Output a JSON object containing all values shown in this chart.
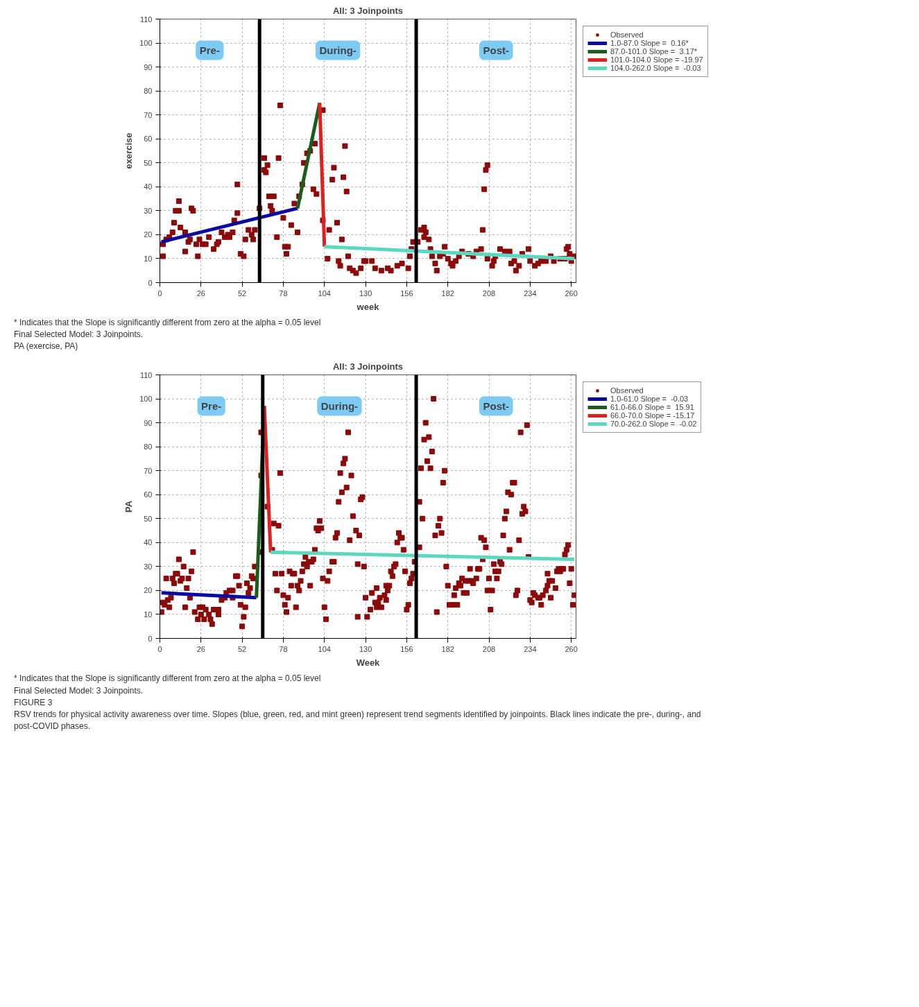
{
  "chart_data": [
    {
      "type": "scatter",
      "title": "All: 3 Joinpoints",
      "xlabel": "week",
      "ylabel": "exercise",
      "xlim": [
        0,
        263
      ],
      "ylim": [
        0,
        110
      ],
      "xticks": [
        0,
        26,
        52,
        78,
        104,
        130,
        156,
        182,
        208,
        234,
        260
      ],
      "yticks": [
        0,
        10,
        20,
        30,
        40,
        50,
        60,
        70,
        80,
        90,
        100,
        110
      ],
      "grid": true,
      "legend": "right",
      "series": [
        {
          "name": "Observed",
          "marker": "square",
          "color": "#8b0a0a",
          "x": [
            2,
            2,
            4,
            6,
            8,
            9,
            10,
            12,
            12,
            13,
            16,
            16,
            18,
            19,
            20,
            21,
            23,
            24,
            25,
            27,
            29,
            31,
            34,
            36,
            37,
            39,
            41,
            43,
            44,
            46,
            47,
            49,
            49,
            51,
            53,
            54,
            56,
            58,
            59,
            60,
            63,
            66,
            66,
            67,
            68,
            69,
            72,
            70,
            71,
            76,
            75,
            78,
            74,
            79,
            80,
            81,
            83,
            85,
            87,
            88,
            90,
            91,
            93,
            95,
            98,
            97,
            99,
            103,
            103,
            106,
            107,
            109,
            110,
            112,
            113,
            114,
            115,
            116,
            117,
            118,
            119,
            120,
            122,
            124,
            127,
            129,
            130,
            134,
            136,
            140,
            144,
            146,
            150,
            153,
            157,
            158,
            159,
            160,
            163,
            165,
            167,
            168,
            167,
            170,
            171,
            172,
            174,
            175,
            177,
            179,
            180,
            182,
            184,
            185,
            187,
            189,
            191,
            195,
            198,
            200,
            203,
            204,
            205,
            206,
            207,
            207,
            210,
            211,
            212,
            215,
            218,
            221,
            222,
            224,
            225,
            227,
            229,
            233,
            234,
            237,
            239,
            241,
            244,
            247,
            249,
            253,
            256,
            257,
            258,
            259,
            260,
            262
          ],
          "values": [
            11,
            16,
            18,
            19,
            21,
            25,
            30,
            30,
            34,
            23,
            21,
            13,
            17,
            18,
            31,
            30,
            16,
            11,
            18,
            16,
            16,
            19,
            14,
            16,
            17,
            21,
            19,
            20,
            19,
            21,
            26,
            29,
            41,
            12,
            11,
            18,
            22,
            20,
            18,
            22,
            31,
            47,
            52,
            46,
            49,
            36,
            36,
            32,
            30,
            74,
            52,
            27,
            19,
            15,
            12,
            15,
            24,
            33,
            21,
            36,
            41,
            50,
            54,
            55,
            58,
            39,
            37,
            72,
            26,
            10,
            22,
            43,
            48,
            25,
            9,
            7,
            18,
            44,
            57,
            38,
            11,
            6,
            5,
            4,
            6,
            9,
            9,
            9,
            6,
            5,
            6,
            5,
            7,
            8,
            6,
            11,
            14,
            17,
            17,
            22,
            23,
            21,
            19,
            18,
            14,
            11,
            8,
            5,
            11,
            12,
            15,
            10,
            8,
            7,
            9,
            11,
            13,
            12,
            11,
            13,
            14,
            22,
            39,
            47,
            49,
            10,
            7,
            9,
            11,
            14,
            13,
            13,
            8,
            9,
            5,
            7,
            12,
            14,
            9,
            7,
            8,
            9,
            9,
            11,
            9,
            10,
            10,
            14,
            15,
            12,
            9,
            11
          ]
        },
        {
          "name": "1.0-87.0 Slope =  0.16*",
          "type": "line",
          "color": "#0a0aa0",
          "x": [
            1,
            87
          ],
          "values": [
            17,
            31
          ]
        },
        {
          "name": "87.0-101.0 Slope =  3.17*",
          "type": "line",
          "color": "#1a5c1a",
          "x": [
            87,
            101
          ],
          "values": [
            31,
            75
          ]
        },
        {
          "name": "101.0-104.0 Slope = -19.97",
          "type": "line",
          "color": "#dd2020",
          "x": [
            101,
            104
          ],
          "values": [
            75,
            15
          ]
        },
        {
          "name": "104.0-262.0 Slope =  -0.03",
          "type": "line",
          "color": "#5dd8c0",
          "x": [
            104,
            262
          ],
          "values": [
            15,
            10
          ]
        }
      ],
      "ref_lines": [
        {
          "axis": "x",
          "value": 63,
          "color": "#000000"
        },
        {
          "axis": "x",
          "value": 162,
          "color": "#000000"
        }
      ],
      "annotations": [
        "Pre-",
        "During-",
        "Post-",
        "* Indicates that the Slope is significantly different from zero at the alpha = 0.05 level",
        "Final Selected Model: 3 Joinpoints.",
        "PA (exercise, PA)"
      ]
    },
    {
      "type": "scatter",
      "title": "All: 3 Joinpoints",
      "xlabel": "Week",
      "ylabel": "PA",
      "xlim": [
        0,
        263
      ],
      "ylim": [
        0,
        110
      ],
      "xticks": [
        0,
        26,
        52,
        78,
        104,
        130,
        156,
        182,
        208,
        234,
        260
      ],
      "yticks": [
        0,
        10,
        20,
        30,
        40,
        50,
        60,
        70,
        80,
        90,
        100,
        110
      ],
      "grid": true,
      "legend": "right",
      "series": [
        {
          "name": "Observed",
          "marker": "square",
          "color": "#8b0a0a",
          "x": [
            1,
            2,
            3,
            5,
            6,
            7,
            4,
            8,
            9,
            10,
            11,
            12,
            13,
            14,
            15,
            16,
            17,
            18,
            19,
            20,
            21,
            22,
            24,
            25,
            26,
            27,
            28,
            29,
            31,
            32,
            33,
            34,
            37,
            37,
            39,
            41,
            42,
            44,
            46,
            46,
            48,
            49,
            50,
            51,
            52,
            53,
            54,
            55,
            56,
            57,
            58,
            59,
            60,
            63,
            64,
            64,
            68,
            71,
            72,
            73,
            74,
            75,
            76,
            77,
            78,
            79,
            80,
            81,
            82,
            83,
            84,
            85,
            86,
            87,
            88,
            89,
            90,
            91,
            92,
            93,
            94,
            95,
            96,
            97,
            98,
            99,
            100,
            101,
            102,
            103,
            104,
            105,
            106,
            107,
            109,
            110,
            111,
            112,
            113,
            114,
            115,
            116,
            117,
            118,
            119,
            120,
            121,
            122,
            124,
            125,
            125,
            126,
            127,
            128,
            129,
            130,
            131,
            133,
            134,
            136,
            137,
            137,
            138,
            139,
            140,
            142,
            143,
            143,
            144,
            145,
            146,
            147,
            148,
            149,
            150,
            151,
            152,
            153,
            154,
            155,
            156,
            157,
            158,
            159,
            160,
            161,
            164,
            164,
            165,
            166,
            167,
            168,
            169,
            170,
            171,
            172,
            173,
            174,
            175,
            176,
            177,
            178,
            179,
            180,
            181,
            182,
            183,
            185,
            186,
            187,
            188,
            189,
            190,
            191,
            192,
            193,
            194,
            195,
            196,
            197,
            198,
            200,
            201,
            202,
            203,
            204,
            205,
            206,
            207,
            208,
            209,
            210,
            211,
            212,
            213,
            214,
            215,
            216,
            217,
            218,
            219,
            220,
            221,
            222,
            223,
            224,
            225,
            226,
            227,
            228,
            229,
            230,
            231,
            232,
            233,
            234,
            235,
            236,
            237,
            239,
            240,
            241,
            242,
            244,
            245,
            245,
            246,
            247,
            248,
            250,
            251,
            252,
            253,
            254,
            255,
            256,
            257,
            258,
            259,
            260,
            261,
            262
          ],
          "values": [
            11,
            15,
            14,
            16,
            13,
            17,
            25,
            25,
            23,
            27,
            27,
            33,
            24,
            25,
            30,
            13,
            21,
            25,
            17,
            28,
            36,
            11,
            8,
            13,
            10,
            13,
            8,
            12,
            10,
            8,
            6,
            12,
            12,
            10,
            16,
            17,
            19,
            20,
            20,
            17,
            26,
            26,
            22,
            14,
            5,
            9,
            13,
            23,
            19,
            21,
            26,
            25,
            30,
            36,
            68,
            86,
            55,
            37,
            48,
            27,
            20,
            47,
            69,
            27,
            18,
            14,
            11,
            17,
            28,
            22,
            27,
            27,
            13,
            22,
            20,
            24,
            28,
            31,
            34,
            30,
            32,
            22,
            32,
            33,
            37,
            46,
            45,
            49,
            46,
            25,
            13,
            8,
            24,
            28,
            32,
            32,
            42,
            44,
            57,
            69,
            61,
            73,
            75,
            63,
            86,
            41,
            68,
            51,
            45,
            9,
            31,
            43,
            58,
            59,
            30,
            17,
            9,
            12,
            19,
            15,
            21,
            13,
            15,
            17,
            13,
            18,
            16,
            22,
            20,
            22,
            28,
            26,
            30,
            31,
            40,
            44,
            42,
            42,
            37,
            28,
            12,
            14,
            23,
            25,
            27,
            32,
            38,
            57,
            71,
            50,
            83,
            90,
            74,
            84,
            71,
            78,
            100,
            43,
            11,
            47,
            50,
            44,
            65,
            70,
            30,
            22,
            14,
            14,
            18,
            21,
            14,
            23,
            22,
            25,
            19,
            24,
            19,
            24,
            29,
            24,
            23,
            25,
            29,
            29,
            42,
            33,
            41,
            38,
            20,
            25,
            12,
            20,
            31,
            28,
            25,
            28,
            32,
            31,
            43,
            50,
            53,
            61,
            37,
            60,
            65,
            65,
            18,
            20,
            41,
            86,
            52,
            55,
            53,
            89,
            34,
            16,
            15,
            19,
            18,
            17,
            17,
            14,
            18,
            20,
            22,
            27,
            24,
            17,
            24,
            21,
            28,
            29,
            28,
            29,
            29,
            35,
            37,
            39,
            23,
            29,
            14,
            18
          ]
        },
        {
          "name": "1.0-61.0 Slope =  -0.03",
          "type": "line",
          "color": "#0a0aa0",
          "x": [
            1,
            61
          ],
          "values": [
            19,
            17
          ]
        },
        {
          "name": "61.0-66.0 Slope =  15.91",
          "type": "line",
          "color": "#1a5c1a",
          "x": [
            61,
            66
          ],
          "values": [
            17,
            97
          ]
        },
        {
          "name": "66.0-70.0 Slope = -15.17",
          "type": "line",
          "color": "#dd2020",
          "x": [
            66,
            70
          ],
          "values": [
            97,
            36
          ]
        },
        {
          "name": "70.0-262.0 Slope =  -0.02",
          "type": "line",
          "color": "#5dd8c0",
          "x": [
            70,
            262
          ],
          "values": [
            36,
            33
          ]
        }
      ],
      "ref_lines": [
        {
          "axis": "x",
          "value": 65,
          "color": "#000000"
        },
        {
          "axis": "x",
          "value": 162,
          "color": "#000000"
        }
      ],
      "annotations": [
        "Pre-",
        "During-",
        "Post-",
        "* Indicates that the Slope is significantly different from zero at the alpha = 0.05 level",
        "Final Selected Model: 3 Joinpoints.",
        "FIGURE 3",
        "RSV trends for physical activity awareness over time. Slopes (blue, green, red, and mint green) represent trend segments identified by joinpoints. Black lines indicate the pre-, during-, and post-COVID phases."
      ]
    }
  ]
}
